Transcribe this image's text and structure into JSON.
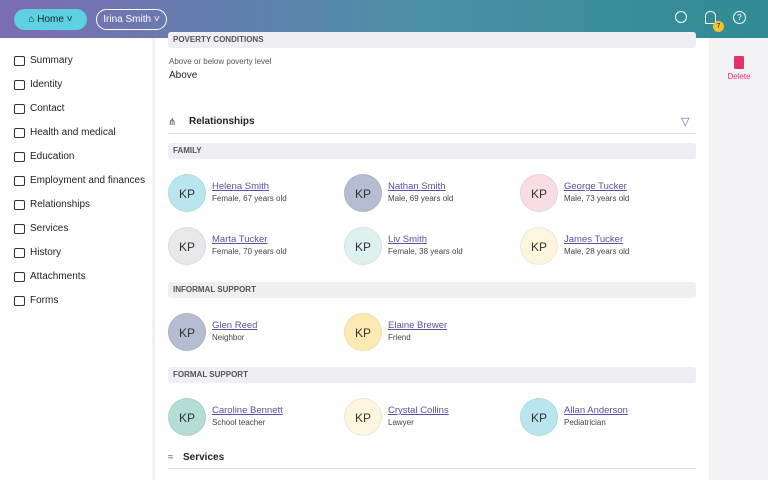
{
  "header": {
    "home": "Home",
    "user": "Irina Smith",
    "badge": "7"
  },
  "sidebar": [
    "Summary",
    "Identity",
    "Contact",
    "Health and medical",
    "Education",
    "Employment and finances",
    "Relationships",
    "Services",
    "History",
    "Attachments",
    "Forms"
  ],
  "actions": {
    "delete": "Delete"
  },
  "poverty": {
    "title": "POVERTY CONDITIONS",
    "label": "Above or below poverty level",
    "value": "Above"
  },
  "relationships": {
    "title": "Relationships",
    "groups": [
      {
        "title": "FAMILY",
        "people": [
          {
            "initials": "KP",
            "name": "Helena Smith",
            "detail": "Female, 67 years old",
            "color": "#b9e6ee"
          },
          {
            "initials": "KP",
            "name": "Nathan Smith",
            "detail": "Male, 69 years old",
            "color": "#b4bdd2"
          },
          {
            "initials": "KP",
            "name": "George Tucker",
            "detail": "Male, 73 years old",
            "color": "#f9dde4"
          },
          {
            "initials": "KP",
            "name": "Marta Tucker",
            "detail": "Female, 70 years old",
            "color": "#e8e8ea"
          },
          {
            "initials": "KP",
            "name": "Liv Smith",
            "detail": "Female, 38 years old",
            "color": "#dff1ef"
          },
          {
            "initials": "KP",
            "name": "James Tucker",
            "detail": "Male, 28 years old",
            "color": "#fdf6de"
          }
        ]
      },
      {
        "title": "INFORMAL SUPPORT",
        "people": [
          {
            "initials": "KP",
            "name": "Glen Reed",
            "detail": "Neighbor",
            "color": "#b4bdd2"
          },
          {
            "initials": "KP",
            "name": "Elaine Brewer",
            "detail": "Friend",
            "color": "#fdeab2"
          }
        ]
      },
      {
        "title": "FORMAL SUPPORT",
        "people": [
          {
            "initials": "KP",
            "name": "Caroline Bennett",
            "detail": "School teacher",
            "color": "#b4ddd5"
          },
          {
            "initials": "KP",
            "name": "Crystal Collins",
            "detail": "Lawyer",
            "color": "#fdf6de"
          },
          {
            "initials": "KP",
            "name": "Allan Anderson",
            "detail": "Pediatrician",
            "color": "#b9e6ee"
          }
        ]
      }
    ]
  },
  "services": {
    "title": "Services"
  }
}
